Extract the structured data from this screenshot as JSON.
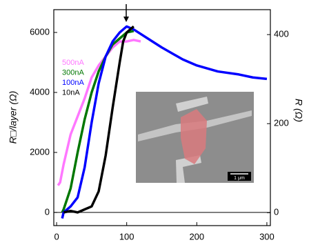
{
  "chart_data": {
    "type": "line",
    "ylabel": "R□/layer (Ω)",
    "y2label": "R (Ω)",
    "xlim": [
      -4,
      305
    ],
    "xticks": [
      0,
      100,
      200,
      300
    ],
    "ylim": [
      -440,
      6760
    ],
    "yticks": [
      0,
      2000,
      4000,
      6000
    ],
    "y2lim": [
      -29,
      456
    ],
    "y2ticks": [
      0,
      200,
      400
    ],
    "series": [
      {
        "name": "500nA",
        "color": "#ff77ff",
        "x": [
          2,
          5,
          10,
          20,
          30,
          40,
          50,
          60,
          70,
          80,
          90,
          100,
          110,
          120
        ],
        "values": [
          900,
          1000,
          1600,
          2600,
          3200,
          3800,
          4500,
          4900,
          5200,
          5500,
          5700,
          5700,
          5750,
          5700
        ]
      },
      {
        "name": "300nA",
        "color": "#007700",
        "x": [
          8,
          10,
          20,
          30,
          40,
          50,
          60,
          70,
          80,
          90,
          100,
          110
        ],
        "values": [
          0,
          100,
          800,
          2000,
          3100,
          4000,
          4700,
          5200,
          5600,
          5800,
          6000,
          6050
        ]
      },
      {
        "name": "100nA",
        "color": "#0000ff",
        "x": [
          8,
          10,
          20,
          30,
          40,
          50,
          60,
          70,
          80,
          90,
          100,
          110,
          130,
          150,
          180,
          200,
          230,
          260,
          280,
          300
        ],
        "values": [
          -200,
          0,
          200,
          500,
          1500,
          3000,
          4300,
          5200,
          5700,
          6000,
          6200,
          6100,
          5800,
          5500,
          5100,
          4900,
          4700,
          4600,
          4500,
          4450
        ]
      },
      {
        "name": "10nA",
        "color": "#000000",
        "x": [
          10,
          20,
          30,
          40,
          50,
          60,
          70,
          80,
          90,
          95,
          100,
          105,
          110
        ],
        "values": [
          0,
          50,
          0,
          100,
          200,
          700,
          1900,
          3500,
          5000,
          5700,
          6000,
          6100,
          6200
        ]
      }
    ],
    "inset": {
      "scale_bar": "1 μm"
    }
  }
}
